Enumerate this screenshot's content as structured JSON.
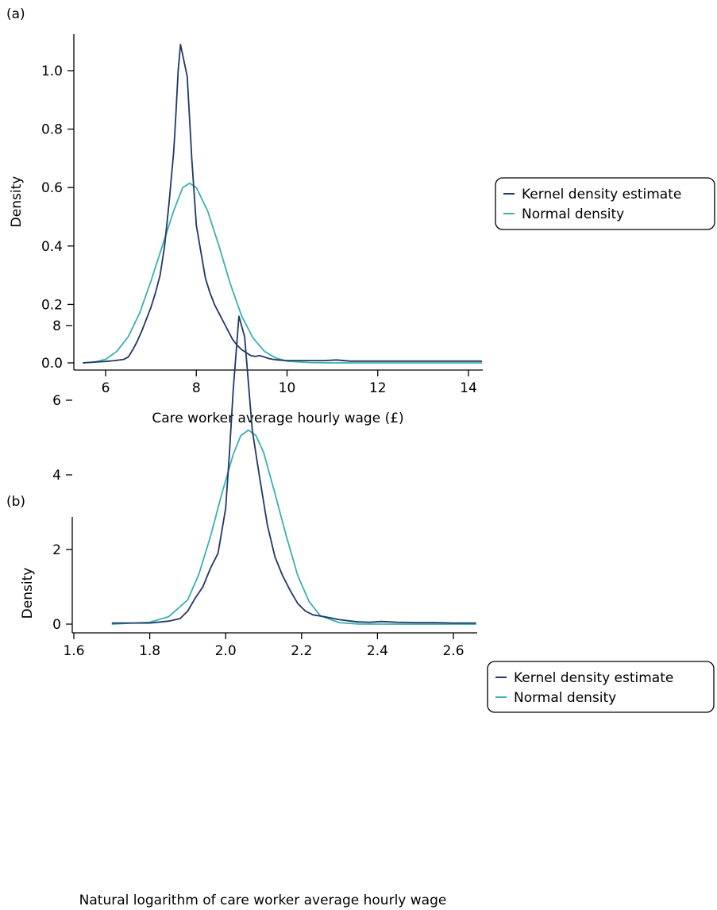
{
  "panels": [
    {
      "label": "(a)"
    },
    {
      "label": "(b)"
    }
  ],
  "colors": {
    "kernel": "#1f3864",
    "normal": "#3aafb2"
  },
  "chart_data": [
    {
      "type": "line",
      "xlabel": "Care worker average hourly wage (£)",
      "ylabel": "Density",
      "xlim": [
        5.45,
        14.3
      ],
      "ylim": [
        -0.03,
        1.13
      ],
      "xticks": [
        6,
        8,
        10,
        12,
        14
      ],
      "xtick_labels": [
        "6",
        "8",
        "10",
        "12",
        "14"
      ],
      "yticks": [
        0.0,
        0.2,
        0.4,
        0.6,
        0.8,
        1.0
      ],
      "ytick_labels": [
        "0.0",
        "0.2",
        "0.4",
        "0.6",
        "0.8",
        "1.0"
      ],
      "legend_position": "right",
      "series": [
        {
          "name": "Kernel density estimate",
          "x": [
            5.5,
            5.8,
            6.0,
            6.2,
            6.4,
            6.5,
            6.6,
            6.7,
            6.8,
            6.9,
            7.0,
            7.1,
            7.2,
            7.3,
            7.4,
            7.5,
            7.55,
            7.6,
            7.65,
            7.8,
            7.9,
            8.0,
            8.1,
            8.2,
            8.3,
            8.4,
            8.5,
            8.6,
            8.7,
            8.8,
            8.9,
            9.0,
            9.1,
            9.2,
            9.3,
            9.4,
            9.5,
            9.6,
            9.7,
            9.8,
            10.0,
            10.3,
            10.8,
            11.1,
            11.4,
            11.8,
            12.3,
            12.7,
            13.2,
            14.3
          ],
          "y": [
            0.0,
            0.003,
            0.005,
            0.008,
            0.012,
            0.02,
            0.045,
            0.075,
            0.11,
            0.15,
            0.19,
            0.24,
            0.3,
            0.4,
            0.55,
            0.72,
            0.85,
            1.0,
            1.09,
            0.98,
            0.7,
            0.47,
            0.38,
            0.29,
            0.24,
            0.2,
            0.17,
            0.14,
            0.11,
            0.08,
            0.06,
            0.045,
            0.035,
            0.025,
            0.022,
            0.025,
            0.02,
            0.015,
            0.012,
            0.01,
            0.008,
            0.008,
            0.008,
            0.01,
            0.006,
            0.006,
            0.006,
            0.006,
            0.006,
            0.006
          ]
        },
        {
          "name": "Normal density",
          "x": [
            5.5,
            5.75,
            6.0,
            6.25,
            6.5,
            6.75,
            7.0,
            7.25,
            7.5,
            7.7,
            7.85,
            8.0,
            8.25,
            8.5,
            8.75,
            9.0,
            9.25,
            9.5,
            9.75,
            10.0,
            10.5,
            11.0,
            12.0,
            13.0,
            14.3
          ],
          "y": [
            0.0,
            0.003,
            0.012,
            0.04,
            0.09,
            0.17,
            0.28,
            0.4,
            0.52,
            0.6,
            0.615,
            0.6,
            0.52,
            0.4,
            0.27,
            0.16,
            0.085,
            0.04,
            0.017,
            0.006,
            0.001,
            0.0,
            0.0,
            0.0,
            0.0
          ]
        }
      ]
    },
    {
      "type": "line",
      "xlabel": "Natural logarithm of care worker average hourly wage",
      "ylabel": "Density",
      "xlim": [
        1.6,
        2.67
      ],
      "ylim": [
        -0.35,
        8.6
      ],
      "xticks": [
        1.6,
        1.8,
        2.0,
        2.2,
        2.4,
        2.6
      ],
      "xtick_labels": [
        "1.6",
        "1.8",
        "2.0",
        "2.2",
        "2.4",
        "2.6"
      ],
      "yticks": [
        0,
        2,
        4,
        6,
        8
      ],
      "ytick_labels": [
        "0",
        "2",
        "4",
        "6",
        "8"
      ],
      "legend_position": "right",
      "series": [
        {
          "name": "Kernel density estimate",
          "x": [
            1.7,
            1.75,
            1.8,
            1.85,
            1.88,
            1.9,
            1.92,
            1.94,
            1.96,
            1.98,
            2.0,
            2.01,
            2.02,
            2.035,
            2.05,
            2.07,
            2.09,
            2.11,
            2.13,
            2.15,
            2.17,
            2.19,
            2.21,
            2.23,
            2.26,
            2.3,
            2.33,
            2.35,
            2.38,
            2.41,
            2.45,
            2.5,
            2.55,
            2.6,
            2.66
          ],
          "y": [
            0.03,
            0.03,
            0.03,
            0.08,
            0.15,
            0.35,
            0.7,
            1.0,
            1.5,
            1.9,
            3.1,
            4.6,
            6.3,
            8.25,
            7.7,
            5.2,
            3.9,
            2.65,
            1.8,
            1.3,
            0.9,
            0.55,
            0.35,
            0.25,
            0.2,
            0.12,
            0.08,
            0.06,
            0.05,
            0.07,
            0.05,
            0.04,
            0.04,
            0.03,
            0.03
          ]
        },
        {
          "name": "Normal density",
          "x": [
            1.7,
            1.8,
            1.85,
            1.9,
            1.93,
            1.96,
            1.99,
            2.02,
            2.04,
            2.06,
            2.08,
            2.1,
            2.13,
            2.16,
            2.19,
            2.22,
            2.25,
            2.3,
            2.35,
            2.45,
            2.66
          ],
          "y": [
            0.0,
            0.05,
            0.2,
            0.65,
            1.35,
            2.35,
            3.5,
            4.55,
            5.05,
            5.2,
            5.05,
            4.6,
            3.5,
            2.35,
            1.3,
            0.6,
            0.22,
            0.04,
            0.005,
            0.0,
            0.0
          ]
        }
      ]
    }
  ]
}
